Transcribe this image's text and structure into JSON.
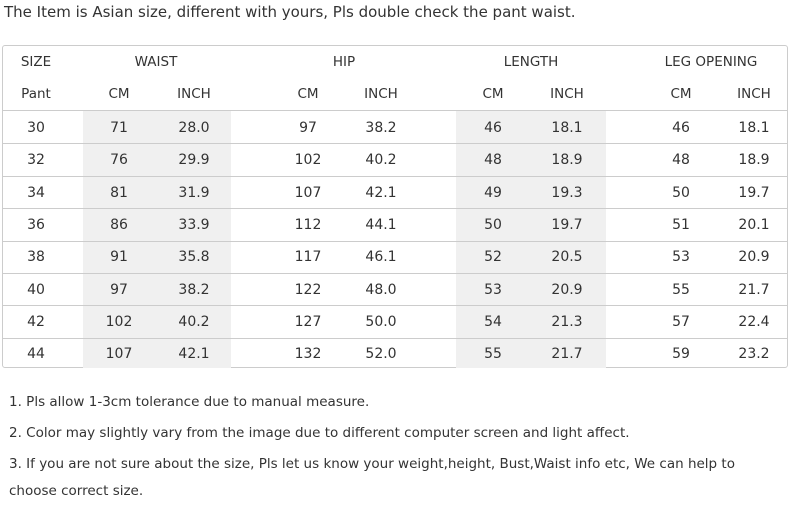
{
  "title": "The Item is Asian size, different with yours, Pls double check the pant waist.",
  "table": {
    "groups": [
      "SIZE",
      "WAIST",
      "HIP",
      "LENGTH",
      "LEG OPENING"
    ],
    "columns": [
      "Pant",
      "CM",
      "INCH",
      "CM",
      "INCH",
      "CM",
      "INCH",
      "CM",
      "INCH"
    ],
    "rows": [
      [
        "30",
        "71",
        "28.0",
        "97",
        "38.2",
        "46",
        "18.1",
        "46",
        "18.1"
      ],
      [
        "32",
        "76",
        "29.9",
        "102",
        "40.2",
        "48",
        "18.9",
        "48",
        "18.9"
      ],
      [
        "34",
        "81",
        "31.9",
        "107",
        "42.1",
        "49",
        "19.3",
        "50",
        "19.7"
      ],
      [
        "36",
        "86",
        "33.9",
        "112",
        "44.1",
        "50",
        "19.7",
        "51",
        "20.1"
      ],
      [
        "38",
        "91",
        "35.8",
        "117",
        "46.1",
        "52",
        "20.5",
        "53",
        "20.9"
      ],
      [
        "40",
        "97",
        "38.2",
        "122",
        "48.0",
        "53",
        "20.9",
        "55",
        "21.7"
      ],
      [
        "42",
        "102",
        "40.2",
        "127",
        "50.0",
        "54",
        "21.3",
        "57",
        "22.4"
      ],
      [
        "44",
        "107",
        "42.1",
        "132",
        "52.0",
        "55",
        "21.7",
        "59",
        "23.2"
      ]
    ]
  },
  "notes": [
    "1. Pls allow 1-3cm tolerance due to manual measure.",
    "2. Color may slightly vary from the image due to different computer screen and light affect.",
    "3. If you are not sure about the size, Pls let us know your weight,height, Bust,Waist info etc, We can help to choose correct size."
  ]
}
